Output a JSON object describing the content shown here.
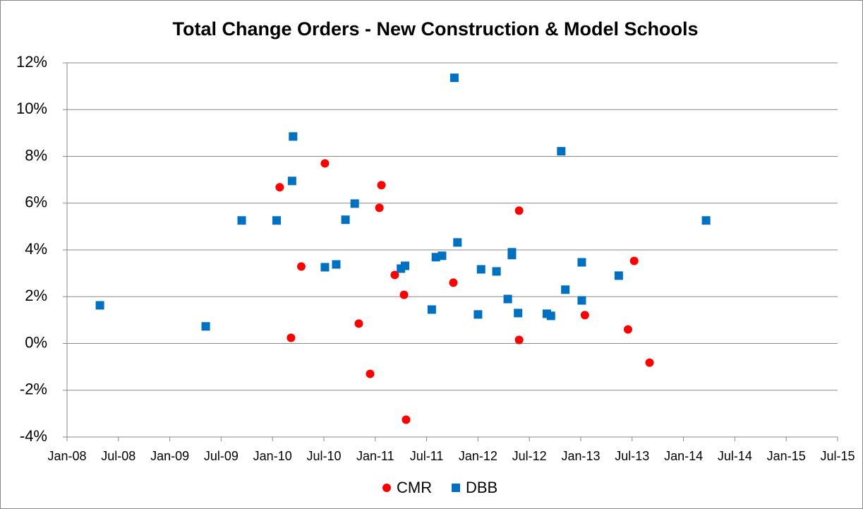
{
  "chart_data": {
    "type": "scatter",
    "title": "Total Change Orders - New Construction & Model Schools",
    "xlim": [
      2008,
      2015.5
    ],
    "xticks": [
      {
        "value": 2008,
        "label": "Jan-08"
      },
      {
        "value": 2008.5,
        "label": "Jul-08"
      },
      {
        "value": 2009,
        "label": "Jan-09"
      },
      {
        "value": 2009.5,
        "label": "Jul-09"
      },
      {
        "value": 2010,
        "label": "Jan-10"
      },
      {
        "value": 2010.5,
        "label": "Jul-10"
      },
      {
        "value": 2011,
        "label": "Jan-11"
      },
      {
        "value": 2011.5,
        "label": "Jul-11"
      },
      {
        "value": 2012,
        "label": "Jan-12"
      },
      {
        "value": 2012.5,
        "label": "Jul-12"
      },
      {
        "value": 2013,
        "label": "Jan-13"
      },
      {
        "value": 2013.5,
        "label": "Jul-13"
      },
      {
        "value": 2014,
        "label": "Jan-14"
      },
      {
        "value": 2014.5,
        "label": "Jul-14"
      },
      {
        "value": 2015,
        "label": "Jan-15"
      },
      {
        "value": 2015.5,
        "label": "Jul-15"
      }
    ],
    "ylim": [
      -4,
      12
    ],
    "yticks": [
      {
        "value": -4,
        "label": "-4%"
      },
      {
        "value": -2,
        "label": "-2%"
      },
      {
        "value": 0,
        "label": "0%"
      },
      {
        "value": 2,
        "label": "2%"
      },
      {
        "value": 4,
        "label": "4%"
      },
      {
        "value": 6,
        "label": "6%"
      },
      {
        "value": 8,
        "label": "8%"
      },
      {
        "value": 10,
        "label": "10%"
      },
      {
        "value": 12,
        "label": "12%"
      }
    ],
    "grid": true,
    "legend": "bottom",
    "series": [
      {
        "name": "CMR",
        "color": "#ff0000",
        "marker": "circle",
        "x": [
          2010.07,
          2010.18,
          2010.28,
          2010.51,
          2010.84,
          2010.95,
          2011.04,
          2011.06,
          2011.19,
          2011.28,
          2011.3,
          2011.76,
          2012.4,
          2012.4,
          2013.04,
          2013.46,
          2013.52,
          2013.67
        ],
        "values": [
          6.68,
          0.24,
          3.29,
          7.7,
          0.85,
          -1.3,
          5.8,
          6.77,
          2.93,
          2.08,
          -3.26,
          2.6,
          5.68,
          0.15,
          1.21,
          0.6,
          3.53,
          -0.82
        ]
      },
      {
        "name": "DBB",
        "color": "#0070c0",
        "marker": "square",
        "x": [
          2008.32,
          2009.35,
          2009.7,
          2010.04,
          2010.2,
          2010.19,
          2010.51,
          2010.62,
          2010.71,
          2010.8,
          2011.25,
          2011.29,
          2011.55,
          2011.59,
          2011.65,
          2011.77,
          2011.8,
          2012.0,
          2012.03,
          2012.18,
          2012.29,
          2012.33,
          2012.33,
          2012.39,
          2012.67,
          2012.71,
          2012.81,
          2012.85,
          2013.01,
          2013.01,
          2013.37,
          2014.22
        ],
        "values": [
          1.63,
          0.73,
          5.26,
          5.26,
          8.85,
          6.95,
          3.26,
          3.38,
          5.29,
          5.98,
          3.2,
          3.32,
          1.45,
          3.69,
          3.75,
          11.36,
          4.32,
          1.24,
          3.17,
          3.08,
          1.9,
          3.9,
          3.78,
          1.3,
          1.27,
          1.18,
          8.22,
          2.3,
          1.84,
          3.47,
          2.9,
          5.26
        ]
      }
    ]
  }
}
